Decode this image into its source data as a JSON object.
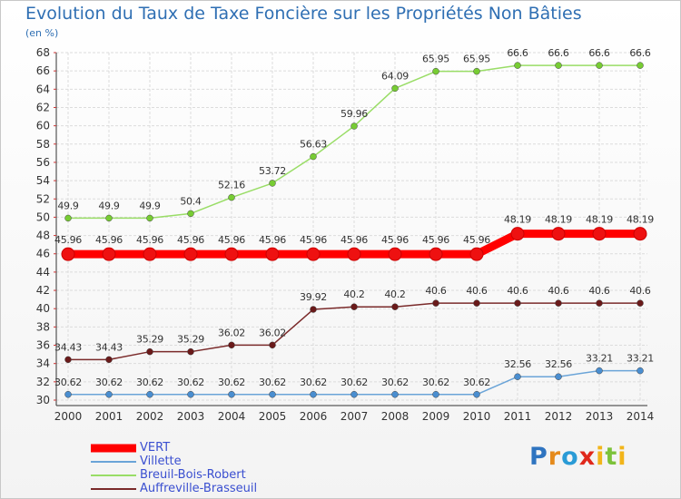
{
  "title": "Evolution du Taux de Taxe Foncière sur les Propriétés Non Bâties",
  "subtitle": "(en %)",
  "brand": {
    "letters": [
      "P",
      "r",
      "o",
      "x",
      "i",
      "t",
      "i"
    ],
    "colors": [
      "#2f74c0",
      "#e58a1c",
      "#2a9bd6",
      "#e0281c",
      "#f2b51a",
      "#7cc23a",
      "#f2b51a"
    ]
  },
  "chart_data": {
    "type": "line",
    "x": [
      2000,
      2001,
      2002,
      2003,
      2004,
      2005,
      2006,
      2007,
      2008,
      2009,
      2010,
      2011,
      2012,
      2013,
      2014
    ],
    "ylim": [
      30,
      68
    ],
    "yticks": [
      30,
      32,
      34,
      36,
      38,
      40,
      42,
      44,
      46,
      48,
      50,
      52,
      54,
      56,
      58,
      60,
      62,
      64,
      66,
      68
    ],
    "grid": true,
    "legend_position": "bottom-left",
    "series": [
      {
        "name": "VERT",
        "color": "#ff0000",
        "point_color": "#ee1111",
        "values": [
          45.96,
          45.96,
          45.96,
          45.96,
          45.96,
          45.96,
          45.96,
          45.96,
          45.96,
          45.96,
          45.96,
          48.19,
          48.19,
          48.19,
          48.19
        ],
        "labels": [
          "45.96",
          "45.96",
          "45.96",
          "45.96",
          "45.96",
          "45.96",
          "45.96",
          "45.96",
          "45.96",
          "45.96",
          "45.96",
          "48.19",
          "48.19",
          "48.19",
          "48.19"
        ]
      },
      {
        "name": "Villette",
        "color": "#6aa4d8",
        "point_color": "#4a8ed0",
        "values": [
          30.62,
          30.62,
          30.62,
          30.62,
          30.62,
          30.62,
          30.62,
          30.62,
          30.62,
          30.62,
          30.62,
          32.56,
          32.56,
          33.21,
          33.21
        ],
        "labels": [
          "30.62",
          "30.62",
          "30.62",
          "30.62",
          "30.62",
          "30.62",
          "30.62",
          "30.62",
          "30.62",
          "30.62",
          "30.62",
          "32.56",
          "32.56",
          "33.21",
          "33.21"
        ]
      },
      {
        "name": "Breuil-Bois-Robert",
        "color": "#99dd66",
        "point_color": "#77cc33",
        "values": [
          49.9,
          49.9,
          49.9,
          50.4,
          52.16,
          53.72,
          56.63,
          59.96,
          64.09,
          65.95,
          65.95,
          66.6,
          66.6,
          66.6,
          66.6
        ],
        "labels": [
          "49.9",
          "49.9",
          "49.9",
          "50.4",
          "52.16",
          "53.72",
          "56.63",
          "59.96",
          "64.09",
          "65.95",
          "65.95",
          "66.6",
          "66.6",
          "66.6",
          "66.6"
        ]
      },
      {
        "name": "Auffreville-Brasseuil",
        "color": "#7a2a2a",
        "point_color": "#6a1a1a",
        "values": [
          34.43,
          34.43,
          35.29,
          35.29,
          36.02,
          36.02,
          39.92,
          40.2,
          40.2,
          40.6,
          40.6,
          40.6,
          40.6,
          40.6,
          40.6
        ],
        "labels": [
          "34.43",
          "34.43",
          "35.29",
          "35.29",
          "36.02",
          "36.02",
          "39.92",
          "40.2",
          "40.2",
          "40.6",
          "40.6",
          "40.6",
          "40.6",
          "40.6",
          "40.6"
        ]
      }
    ]
  }
}
